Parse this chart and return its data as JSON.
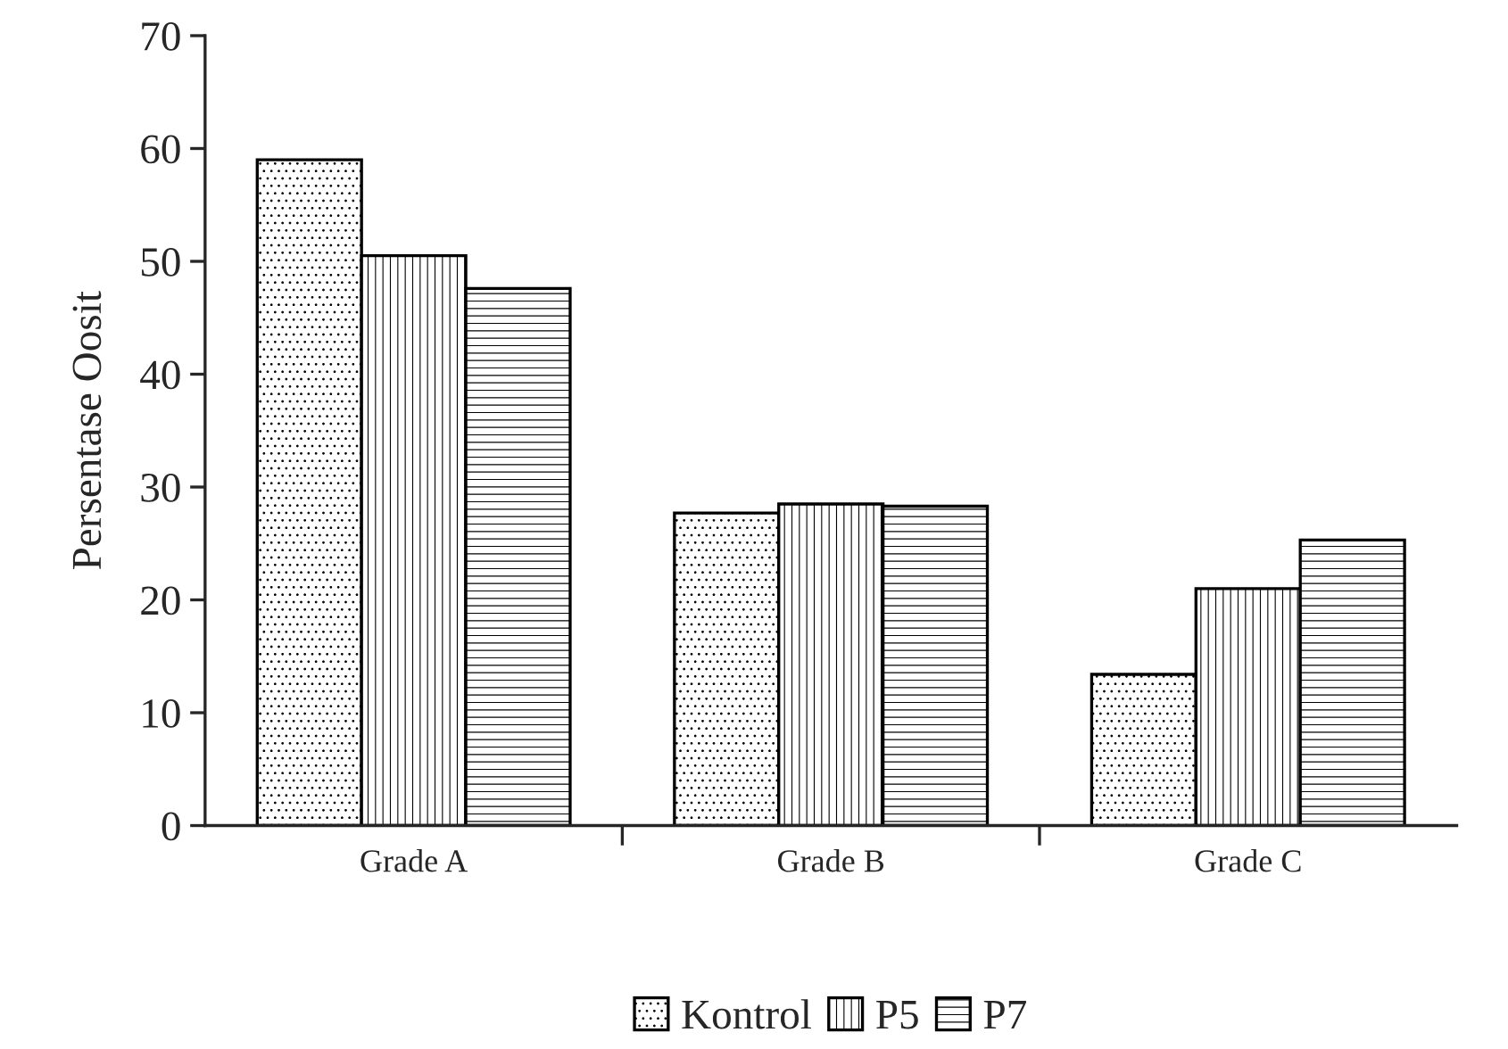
{
  "chart_data": {
    "type": "bar",
    "ylabel": "Persentase Oosit",
    "categories": [
      "Grade A",
      "Grade B",
      "Grade C"
    ],
    "series": [
      {
        "name": "Kontrol",
        "values": [
          59,
          27.7,
          13.4
        ]
      },
      {
        "name": "P5",
        "values": [
          50.5,
          28.5,
          21.0
        ]
      },
      {
        "name": "P7",
        "values": [
          47.6,
          28.3,
          25.3
        ]
      }
    ],
    "ylim": [
      0,
      70
    ],
    "yticks": [
      0,
      10,
      20,
      30,
      40,
      50,
      60,
      70
    ],
    "grid": false,
    "legend": "bottom"
  }
}
